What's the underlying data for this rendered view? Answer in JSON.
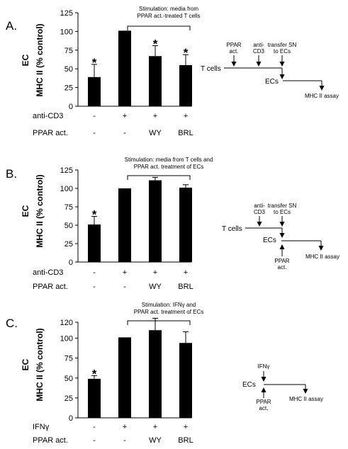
{
  "colors": {
    "bar": "#000000",
    "background": "#ffffff"
  },
  "chart_data": [
    {
      "type": "bar",
      "panel": "A.",
      "ylabel_line1": "EC",
      "ylabel_line2": "MHC II (% control)",
      "ylim": [
        0,
        125
      ],
      "yticks": [
        0,
        25,
        50,
        75,
        100,
        125
      ],
      "values": [
        39,
        101,
        67,
        55
      ],
      "errors": [
        17,
        0,
        14,
        14
      ],
      "significant": [
        true,
        false,
        true,
        true
      ],
      "star": "*",
      "conditions": [
        {
          "label": "anti-CD3",
          "marks": [
            "-",
            "+",
            "+",
            "+"
          ]
        },
        {
          "label": "PPAR act.",
          "marks": [
            "-",
            "-",
            "WY",
            "BRL"
          ]
        }
      ],
      "stimulation": [
        "Stimulation: media from",
        "PPAR act.-treated T cells"
      ],
      "schematic": {
        "pre_labels": [
          [
            "PPAR",
            "act."
          ],
          [
            "anti-",
            "CD3"
          ],
          [
            "transfer SN",
            "to ECs"
          ]
        ],
        "post_labels": [],
        "t_cells": "T cells",
        "ecs": "ECs",
        "assay": "MHC II assay"
      }
    },
    {
      "type": "bar",
      "panel": "B.",
      "ylabel_line1": "EC",
      "ylabel_line2": "MHC II (% control)",
      "ylim": [
        0,
        125
      ],
      "yticks": [
        0,
        25,
        50,
        75,
        100,
        125
      ],
      "values": [
        51,
        100,
        111,
        101
      ],
      "errors": [
        11,
        0,
        4,
        4
      ],
      "significant": [
        true,
        false,
        false,
        false
      ],
      "star": "*",
      "conditions": [
        {
          "label": "anti-CD3",
          "marks": [
            "-",
            "+",
            "+",
            "+"
          ]
        },
        {
          "label": "PPAR act.",
          "marks": [
            "-",
            "-",
            "WY",
            "BRL"
          ]
        }
      ],
      "stimulation": [
        "Stimulation: media from T cells and",
        "PPAR act. treatment of ECs"
      ],
      "schematic": {
        "pre_labels": [
          [
            "anti-",
            "CD3"
          ],
          [
            "transfer SN",
            "to ECs"
          ]
        ],
        "post_labels": [
          [
            "PPAR",
            "act."
          ]
        ],
        "t_cells": "T cells",
        "ecs": "ECs",
        "assay": "MHC II assay"
      }
    },
    {
      "type": "bar",
      "panel": "C.",
      "ylabel_line1": "EC",
      "ylabel_line2": "MHC II (% control)",
      "ylim": [
        0,
        120
      ],
      "yticks": [
        0,
        25,
        50,
        75,
        100,
        120
      ],
      "values": [
        49,
        101,
        110,
        94
      ],
      "errors": [
        4,
        0,
        15,
        14
      ],
      "significant": [
        true,
        false,
        false,
        false
      ],
      "star": "*",
      "conditions": [
        {
          "label": "IFNγ",
          "marks": [
            "-",
            "+",
            "+",
            "+"
          ]
        },
        {
          "label": "PPAR act.",
          "marks": [
            "-",
            "-",
            "WY",
            "BRL"
          ]
        }
      ],
      "stimulation": [
        "Stimulation: IFNγ and",
        "PPAR act. treatment of ECs"
      ],
      "schematic": {
        "pre_labels": [
          [
            "IFNγ"
          ]
        ],
        "post_labels": [
          [
            "PPAR",
            "act."
          ]
        ],
        "t_cells": "",
        "ecs": "ECs",
        "assay": "MHC II assay"
      }
    }
  ]
}
